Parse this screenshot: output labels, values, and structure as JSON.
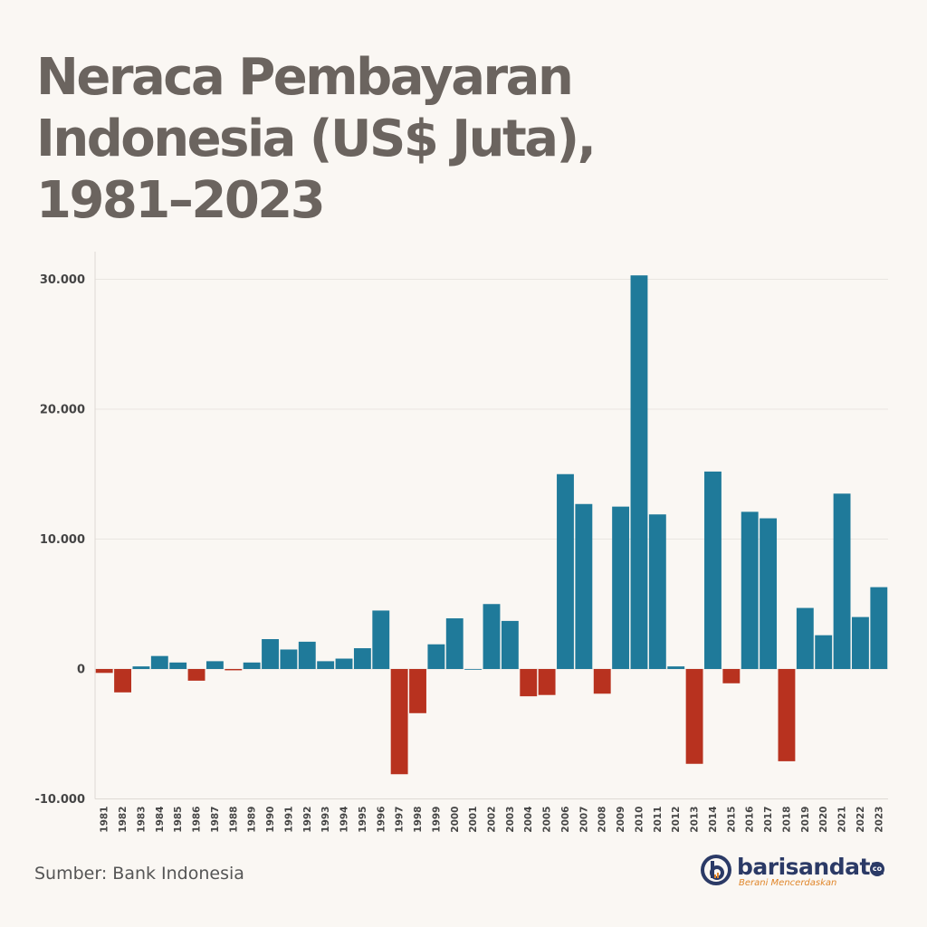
{
  "title": "Neraca Pembayaran Indonesia (US$ Juta), 1981–2023",
  "source": "Sumber: Bank Indonesia",
  "brand": {
    "name": "barisandata",
    "suffix": "co",
    "tagline": "Berani Mencerdaskan"
  },
  "colors": {
    "positive": "#1f7a9a",
    "negative": "#b8321f",
    "background": "#faf7f3",
    "title": "#6b645f",
    "grid": "#e9e6e1"
  },
  "chart_data": {
    "type": "bar",
    "title": "Neraca Pembayaran Indonesia (US$ Juta), 1981–2023",
    "xlabel": "",
    "ylabel": "",
    "ylim": [
      -10000,
      32000
    ],
    "yticks": [
      30000,
      20000,
      10000,
      0,
      -10000
    ],
    "ytick_labels": [
      "30.000",
      "20.000",
      "10.000",
      "0",
      "-10.000"
    ],
    "grid": true,
    "categories": [
      "1981",
      "1982",
      "1983",
      "1984",
      "1985",
      "1986",
      "1987",
      "1988",
      "1989",
      "1990",
      "1991",
      "1992",
      "1993",
      "1994",
      "1995",
      "1996",
      "1997",
      "1998",
      "1999",
      "2000",
      "2001",
      "2002",
      "2003",
      "2004",
      "2005",
      "2006",
      "2007",
      "2008",
      "2009",
      "2010",
      "2011",
      "2012",
      "2013",
      "2014",
      "2015",
      "2016",
      "2017",
      "2018",
      "2019",
      "2020",
      "2021",
      "2022",
      "2023"
    ],
    "values": [
      -300,
      -1800,
      200,
      1000,
      500,
      -900,
      600,
      -100,
      500,
      2300,
      1500,
      2100,
      600,
      800,
      1600,
      4500,
      -8100,
      -3400,
      1900,
      3900,
      0,
      5000,
      3700,
      -2100,
      -2000,
      15000,
      12700,
      -1900,
      12500,
      30300,
      11900,
      200,
      -7300,
      15200,
      -1100,
      12100,
      11600,
      -7100,
      4700,
      2600,
      13500,
      4000,
      6300
    ]
  }
}
